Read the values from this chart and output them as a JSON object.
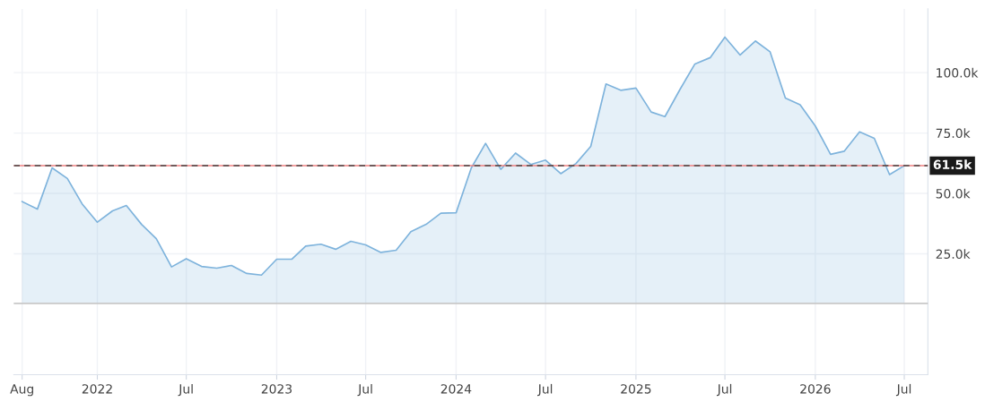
{
  "chart_data": {
    "type": "area",
    "x": [
      "2021-08",
      "2021-09",
      "2021-10",
      "2021-11",
      "2021-12",
      "2022-01",
      "2022-02",
      "2022-03",
      "2022-04",
      "2022-05",
      "2022-06",
      "2022-07",
      "2022-08",
      "2022-09",
      "2022-10",
      "2022-11",
      "2022-12",
      "2023-01",
      "2023-02",
      "2023-03",
      "2023-04",
      "2023-05",
      "2023-06",
      "2023-07",
      "2023-08",
      "2023-09",
      "2023-10",
      "2023-11",
      "2023-12",
      "2024-01",
      "2024-02",
      "2024-03",
      "2024-04",
      "2024-05",
      "2024-06",
      "2024-07",
      "2024-08",
      "2024-09",
      "2024-10",
      "2024-11",
      "2024-12",
      "2025-01",
      "2025-02",
      "2025-03",
      "2025-04",
      "2025-05",
      "2025-06",
      "2025-07",
      "2025-08",
      "2025-09",
      "2025-10",
      "2025-11",
      "2025-12",
      "2026-01",
      "2026-02",
      "2026-03",
      "2026-04",
      "2026-05",
      "2026-06",
      "2026-07"
    ],
    "series": [
      {
        "color": "#7eb3dc",
        "values": [
          46600,
          43500,
          60600,
          56200,
          45700,
          38100,
          42800,
          45000,
          37200,
          31300,
          19600,
          23000,
          19800,
          19100,
          20200,
          16900,
          16200,
          22800,
          22800,
          28200,
          29000,
          26900,
          30200,
          28700,
          25600,
          26500,
          34200,
          37200,
          41800,
          42000,
          60600,
          70700,
          60000,
          66700,
          62000,
          63800,
          58200,
          62400,
          69500,
          95300,
          92700,
          93600,
          83700,
          81800,
          93200,
          103600,
          106200,
          114700,
          107300,
          113100,
          108600,
          89500,
          86700,
          77900,
          66200,
          67500,
          75500,
          72800,
          57800,
          61500
        ]
      }
    ],
    "xlim": [
      "2021-07-15",
      "2026-08-18"
    ],
    "xticks": [
      {
        "value": "2021-08",
        "label": "Aug"
      },
      {
        "value": "2022-01",
        "label": "2022"
      },
      {
        "value": "2022-07",
        "label": "Jul"
      },
      {
        "value": "2023-01",
        "label": "2023"
      },
      {
        "value": "2023-07",
        "label": "Jul"
      },
      {
        "value": "2024-01",
        "label": "2024"
      },
      {
        "value": "2024-07",
        "label": "Jul"
      },
      {
        "value": "2025-01",
        "label": "2025"
      },
      {
        "value": "2025-07",
        "label": "Jul"
      },
      {
        "value": "2026-01",
        "label": "2026"
      },
      {
        "value": "2026-07",
        "label": "Jul"
      }
    ],
    "ylim": [
      -25000,
      126400
    ],
    "yticks": [
      {
        "value": 25000,
        "label": "25.0k"
      },
      {
        "value": 50000,
        "label": "50.0k"
      },
      {
        "value": 75000,
        "label": "75.0k"
      },
      {
        "value": 100000,
        "label": "100.0k"
      }
    ],
    "ref_lines": [
      {
        "axis": "y",
        "value": 4500,
        "color": "#c8c8c8",
        "line_style": "solid"
      },
      {
        "axis": "y",
        "value": 61500,
        "color": "#f08080",
        "line_style": "solid"
      },
      {
        "axis": "y",
        "value": 61500,
        "color": "#444444",
        "line_style": "dashed",
        "label": "61.5k"
      }
    ],
    "grid": true
  }
}
